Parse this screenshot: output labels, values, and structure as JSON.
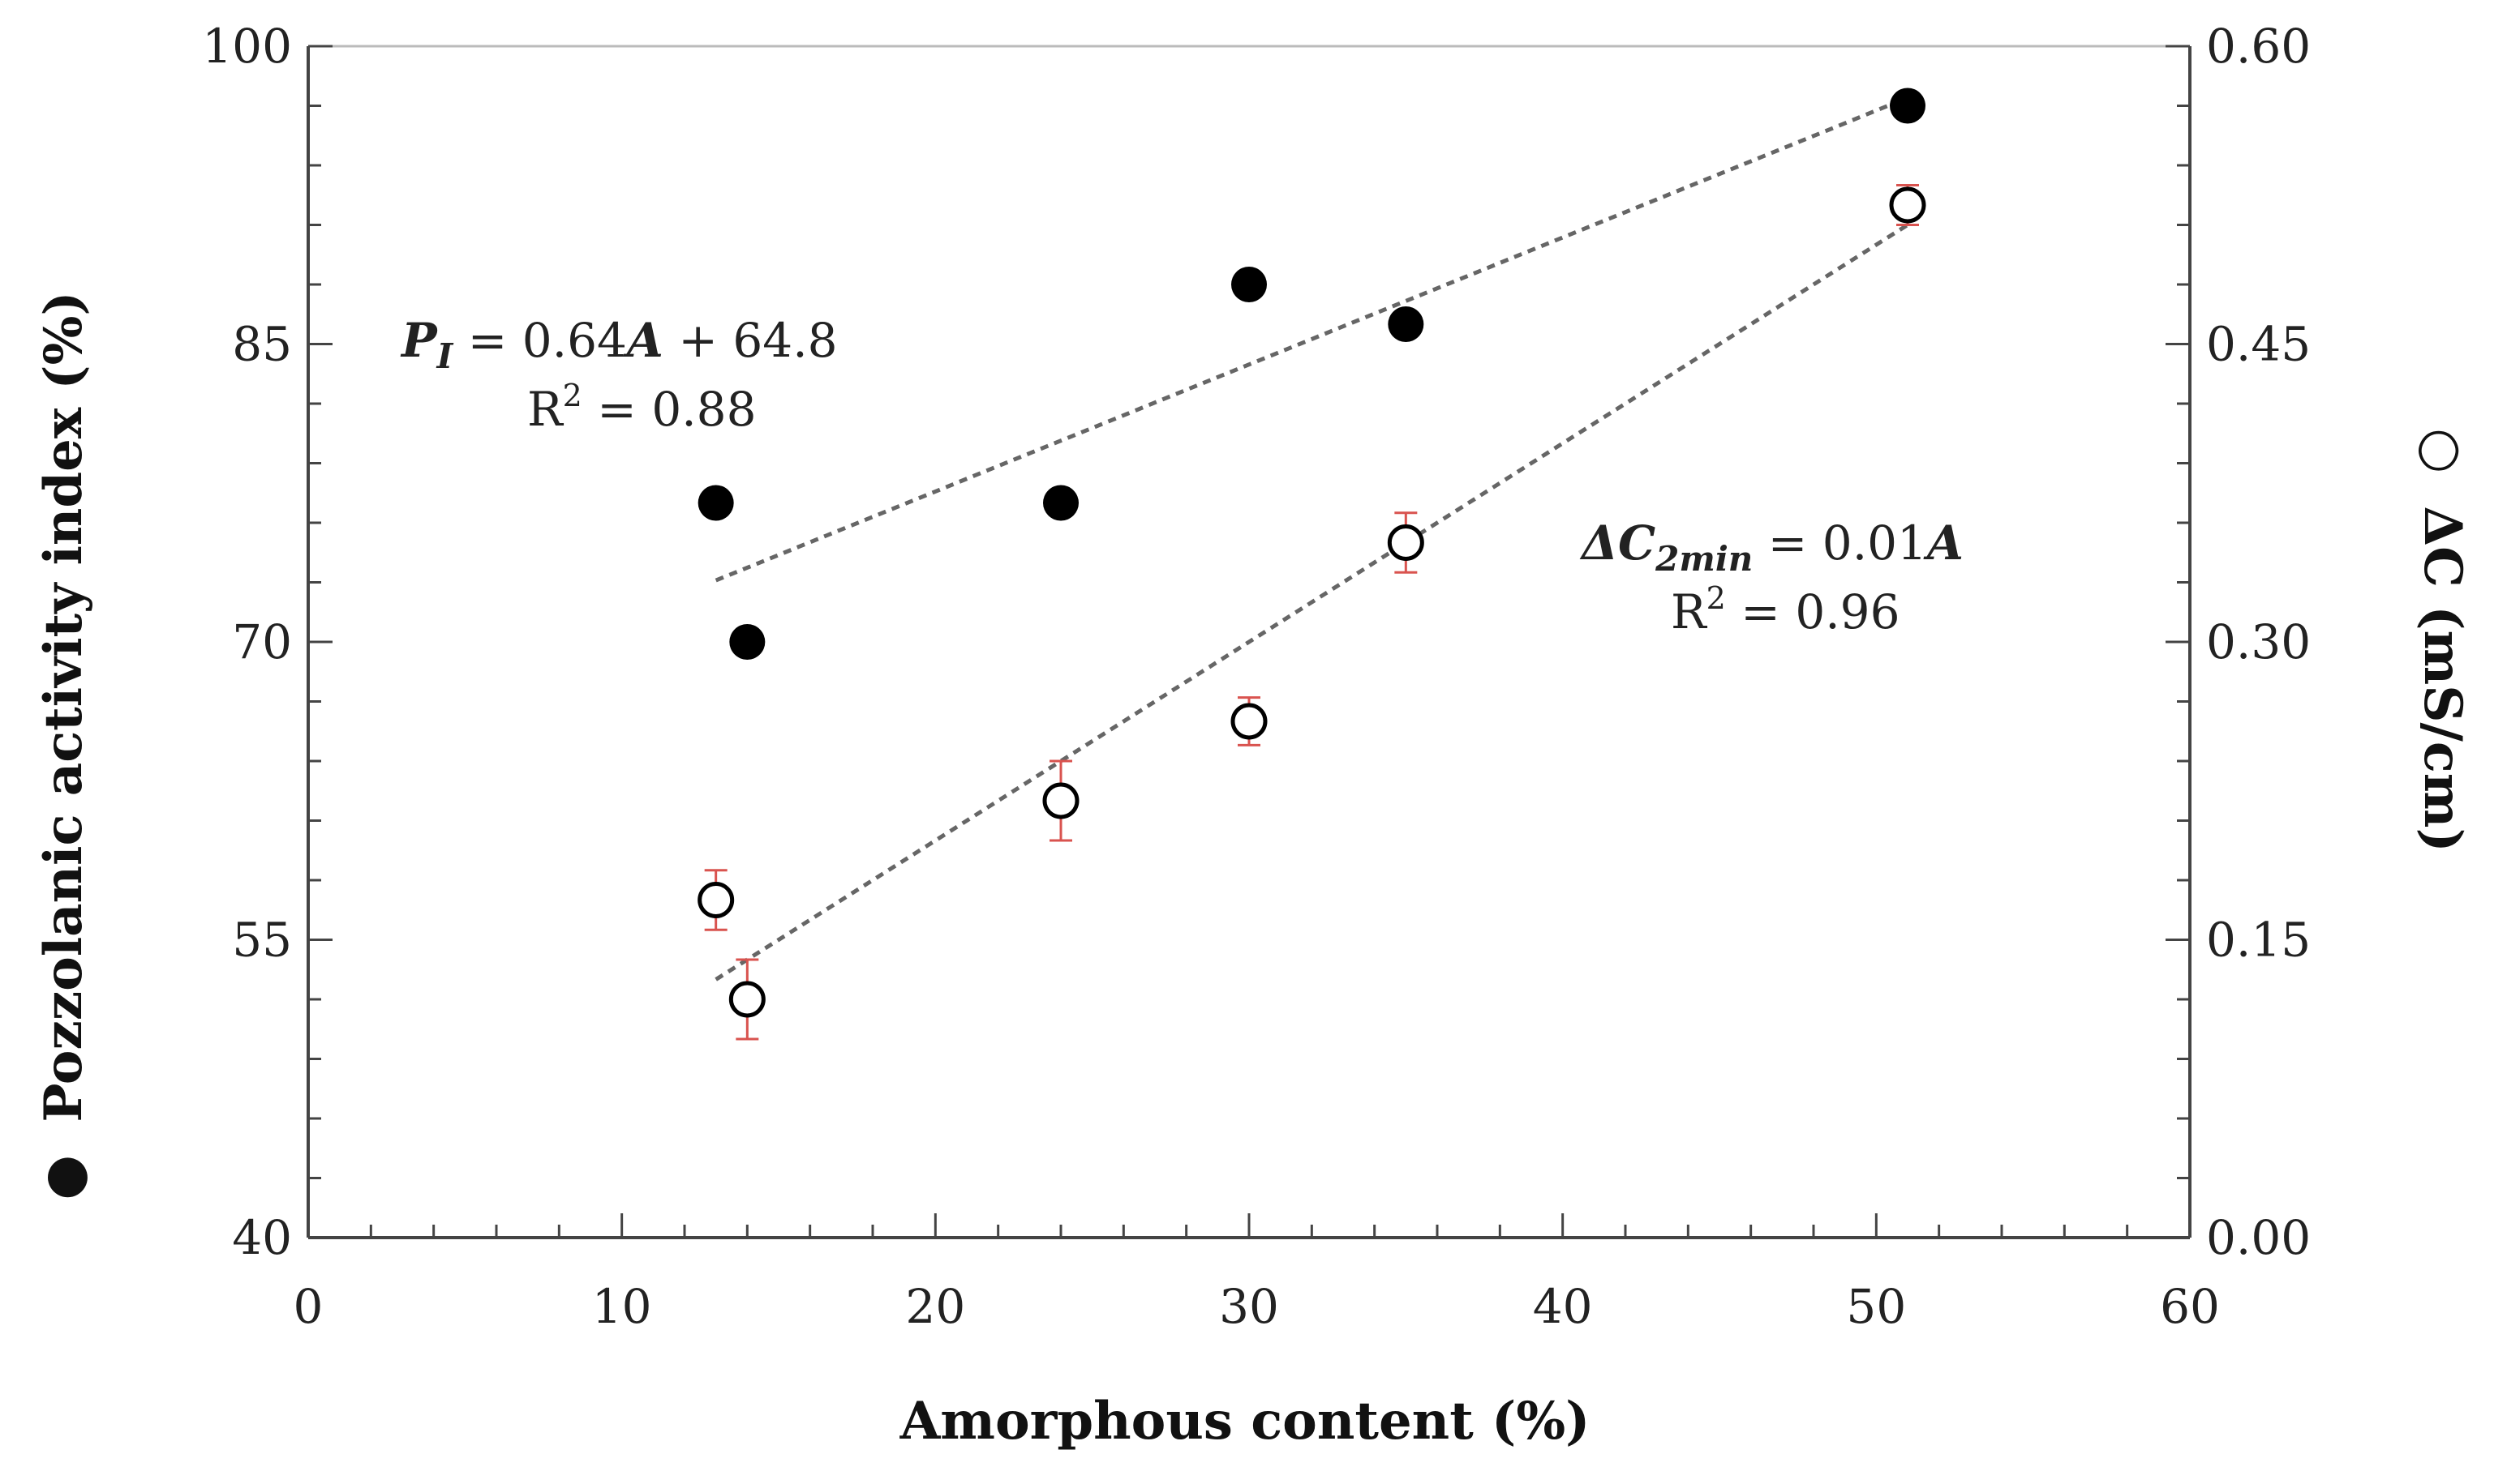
{
  "chart_data": {
    "type": "scatter",
    "xlabel": "Amorphous content (%)",
    "ylabel_left": "Pozzolanic activity index (%)",
    "ylabel_right": "ΔC (mS/cm)",
    "ylabel_left_marker": "●",
    "ylabel_right_marker": "○",
    "xlim": [
      0,
      60
    ],
    "ylim_left": [
      40,
      100
    ],
    "ylim_right": [
      0.0,
      0.6
    ],
    "x_ticks": [
      "0",
      "10",
      "20",
      "30",
      "40",
      "50",
      "60"
    ],
    "y_left_ticks": [
      "40",
      "55",
      "70",
      "85",
      "100"
    ],
    "y_right_ticks": [
      "0.00",
      "0.15",
      "0.30",
      "0.45",
      "0.60"
    ],
    "grid": false,
    "series": [
      {
        "axis": "left",
        "marker": "filled-circle",
        "color": "#000000",
        "x": [
          13,
          14,
          24,
          30,
          35,
          51
        ],
        "y": [
          77,
          70,
          77,
          88,
          86,
          97
        ],
        "trendline": {
          "x": [
            13,
            51
          ],
          "y": [
            73.1,
            97.4
          ]
        }
      },
      {
        "axis": "right",
        "marker": "open-circle",
        "color": "#000000",
        "error_color": "#d9534f",
        "x": [
          13,
          14,
          24,
          30,
          35,
          51
        ],
        "y": [
          0.17,
          0.12,
          0.22,
          0.26,
          0.35,
          0.52
        ],
        "yerr": [
          0.015,
          0.02,
          0.02,
          0.012,
          0.015,
          0.01
        ],
        "trendline": {
          "x": [
            13,
            51
          ],
          "y": [
            0.13,
            0.51
          ]
        }
      }
    ],
    "annotations": {
      "eq1_lhs": "P",
      "eq1_sub": "I",
      "eq1_rhs_mid": " = 0.64",
      "eq1_var": "A",
      "eq1_rhs_end": " + 64.8",
      "eq1_r2_pre": "R",
      "eq1_r2_sup": "2",
      "eq1_r2_val": " = 0.88",
      "eq2_lhs": "ΔC",
      "eq2_sub": "2min",
      "eq2_rhs_mid": " = 0.01",
      "eq2_var": "A",
      "eq2_r2_pre": "R",
      "eq2_r2_sup": "2",
      "eq2_r2_val": " = 0.96"
    }
  }
}
